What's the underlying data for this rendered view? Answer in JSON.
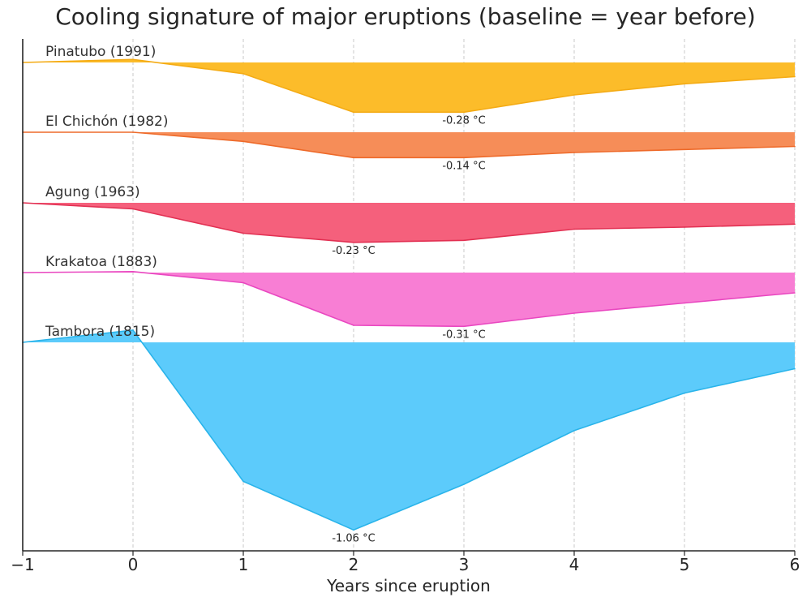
{
  "chart_data": {
    "type": "area",
    "title": "Cooling signature of major eruptions (baseline = year before)",
    "xlabel": "Years since eruption",
    "ylabel": "",
    "xlim": [
      -1,
      6
    ],
    "xticks": [
      -1,
      0,
      1,
      2,
      3,
      4,
      5,
      6
    ],
    "grid": "vertical dashed",
    "x": [
      -1,
      0,
      1,
      2,
      3,
      4,
      5,
      6
    ],
    "unit": "°C",
    "series": [
      {
        "name": "Pinatubo (1991)",
        "color": "#fcbc2a",
        "line_color": "#f4ab14",
        "values": [
          0.0,
          0.03,
          -0.11,
          -0.49,
          -0.49,
          -0.32,
          -0.21,
          -0.14
        ],
        "annotation": "-0.28 °C"
      },
      {
        "name": "El Chichón (1982)",
        "color": "#f68d58",
        "line_color": "#ee6a2a",
        "values": [
          0.0,
          0.0,
          -0.09,
          -0.25,
          -0.25,
          -0.2,
          -0.17,
          -0.14
        ],
        "annotation": "-0.14 °C"
      },
      {
        "name": "Agung (1963)",
        "color": "#f5607c",
        "line_color": "#e23153",
        "values": [
          0.0,
          -0.06,
          -0.3,
          -0.39,
          -0.37,
          -0.26,
          -0.24,
          -0.21
        ],
        "annotation": "-0.23 °C"
      },
      {
        "name": "Krakatoa (1883)",
        "color": "#f87ed4",
        "line_color": "#e947c0",
        "values": [
          0.0,
          0.01,
          -0.1,
          -0.52,
          -0.53,
          -0.4,
          -0.3,
          -0.2
        ],
        "annotation": "-0.31 °C"
      },
      {
        "name": "Tambora (1815)",
        "color": "#5ccbfb",
        "line_color": "#2ab4ea",
        "values": [
          0.0,
          0.12,
          -1.37,
          -1.85,
          -1.4,
          -0.87,
          -0.5,
          -0.26
        ],
        "annotation": "-1.06 °C"
      }
    ]
  }
}
